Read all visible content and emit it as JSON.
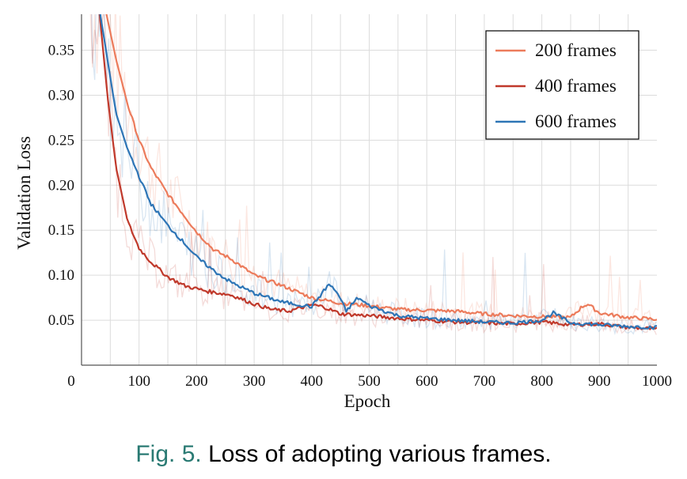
{
  "chart_data": {
    "type": "line",
    "xlabel": "Epoch",
    "ylabel": "Validation Loss",
    "xlim": [
      0,
      1000
    ],
    "ylim": [
      0,
      0.39
    ],
    "x_ticks": [
      0,
      100,
      200,
      300,
      400,
      500,
      600,
      700,
      800,
      900,
      1000
    ],
    "y_ticks": [
      0.05,
      0.1,
      0.15,
      0.2,
      0.25,
      0.3,
      0.35
    ],
    "y_tick_labels": [
      "0.05",
      "0.10",
      "0.15",
      "0.20",
      "0.25",
      "0.30",
      "0.35"
    ],
    "grid": true,
    "legend_position": "top-right",
    "series": [
      {
        "name": "200 frames",
        "color": "#ec7b5b",
        "x": [
          10,
          40,
          60,
          80,
          100,
          120,
          150,
          180,
          200,
          230,
          260,
          300,
          350,
          400,
          450,
          500,
          550,
          600,
          650,
          700,
          750,
          800,
          850,
          870,
          880,
          900,
          950,
          1000
        ],
        "y": [
          0.4,
          0.4,
          0.34,
          0.29,
          0.25,
          0.22,
          0.19,
          0.165,
          0.148,
          0.128,
          0.118,
          0.1,
          0.088,
          0.075,
          0.069,
          0.066,
          0.062,
          0.061,
          0.06,
          0.057,
          0.055,
          0.054,
          0.053,
          0.065,
          0.068,
          0.058,
          0.053,
          0.051
        ]
      },
      {
        "name": "400 frames",
        "color": "#c0392b",
        "x": [
          10,
          30,
          45,
          60,
          80,
          100,
          120,
          150,
          180,
          220,
          260,
          300,
          330,
          360,
          400,
          420,
          450,
          500,
          550,
          600,
          650,
          700,
          750,
          800,
          850,
          900,
          950,
          1000
        ],
        "y": [
          0.4,
          0.4,
          0.3,
          0.22,
          0.16,
          0.13,
          0.115,
          0.098,
          0.088,
          0.082,
          0.078,
          0.068,
          0.062,
          0.06,
          0.067,
          0.065,
          0.057,
          0.055,
          0.052,
          0.05,
          0.048,
          0.047,
          0.046,
          0.048,
          0.045,
          0.046,
          0.042,
          0.04
        ]
      },
      {
        "name": "600 frames",
        "color": "#2e75b6",
        "x": [
          10,
          30,
          45,
          60,
          80,
          100,
          120,
          150,
          180,
          200,
          230,
          260,
          300,
          350,
          400,
          430,
          445,
          460,
          480,
          500,
          550,
          600,
          650,
          700,
          750,
          800,
          820,
          850,
          900,
          950,
          1000
        ],
        "y": [
          0.4,
          0.4,
          0.34,
          0.28,
          0.24,
          0.21,
          0.18,
          0.155,
          0.135,
          0.12,
          0.105,
          0.092,
          0.08,
          0.07,
          0.065,
          0.09,
          0.08,
          0.06,
          0.075,
          0.066,
          0.055,
          0.052,
          0.05,
          0.048,
          0.047,
          0.05,
          0.058,
          0.047,
          0.045,
          0.043,
          0.042
        ]
      }
    ]
  },
  "caption": {
    "label": "Fig. 5.",
    "text": "Loss of adopting various frames."
  }
}
